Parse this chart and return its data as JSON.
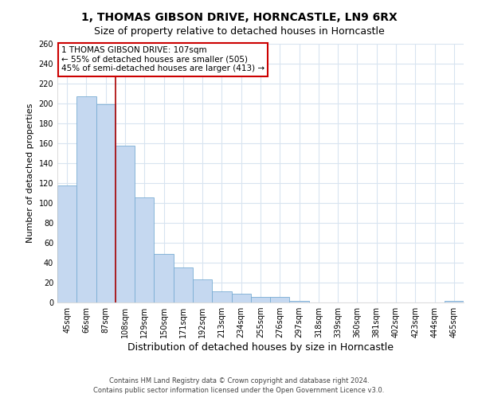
{
  "title_line1": "1, THOMAS GIBSON DRIVE, HORNCASTLE, LN9 6RX",
  "title_line2": "Size of property relative to detached houses in Horncastle",
  "xlabel": "Distribution of detached houses by size in Horncastle",
  "ylabel": "Number of detached properties",
  "categories": [
    "45sqm",
    "66sqm",
    "87sqm",
    "108sqm",
    "129sqm",
    "150sqm",
    "171sqm",
    "192sqm",
    "213sqm",
    "234sqm",
    "255sqm",
    "276sqm",
    "297sqm",
    "318sqm",
    "339sqm",
    "360sqm",
    "381sqm",
    "402sqm",
    "423sqm",
    "444sqm",
    "465sqm"
  ],
  "values": [
    118,
    207,
    199,
    158,
    106,
    49,
    35,
    23,
    11,
    9,
    6,
    6,
    2,
    0,
    0,
    0,
    0,
    0,
    0,
    0,
    2
  ],
  "bar_color": "#c5d8f0",
  "bar_edge_color": "#7aadd4",
  "grid_color": "#d8e4f0",
  "vline_pos": 3,
  "vline_color": "#aa0000",
  "annotation_text": "1 THOMAS GIBSON DRIVE: 107sqm\n← 55% of detached houses are smaller (505)\n45% of semi-detached houses are larger (413) →",
  "annotation_box_color": "#ffffff",
  "annotation_box_edgecolor": "#cc0000",
  "ylim": [
    0,
    260
  ],
  "yticks": [
    0,
    20,
    40,
    60,
    80,
    100,
    120,
    140,
    160,
    180,
    200,
    220,
    240,
    260
  ],
  "footer_line1": "Contains HM Land Registry data © Crown copyright and database right 2024.",
  "footer_line2": "Contains public sector information licensed under the Open Government Licence v3.0.",
  "bg_color": "#ffffff",
  "title1_fontsize": 10,
  "title2_fontsize": 9,
  "ylabel_fontsize": 8,
  "xlabel_fontsize": 9,
  "tick_fontsize": 7,
  "footer_fontsize": 6,
  "ann_fontsize": 7.5
}
